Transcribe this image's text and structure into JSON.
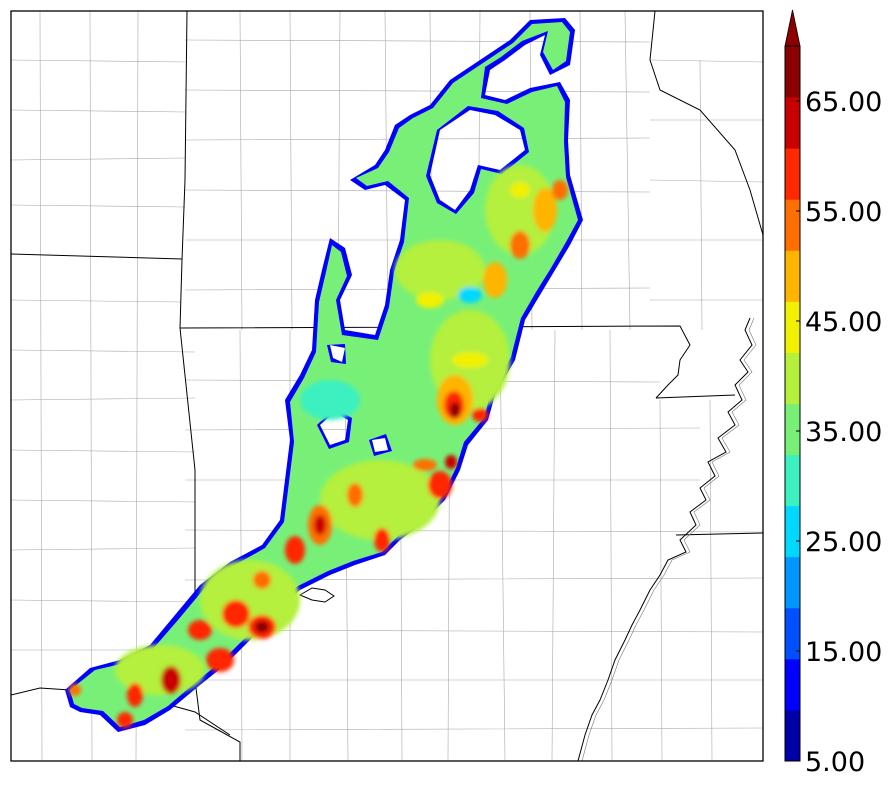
{
  "colorbar": {
    "labels": [
      "5.00",
      "15.00",
      "25.00",
      "35.00",
      "45.00",
      "55.00",
      "65.00"
    ],
    "levels": [
      5,
      10,
      15,
      20,
      25,
      30,
      35,
      40,
      45,
      50,
      55,
      60,
      65,
      70
    ],
    "colors": [
      "#0000a8",
      "#0000ff",
      "#0050ff",
      "#0095ff",
      "#00d8ff",
      "#3cf0c0",
      "#78f078",
      "#b4f03c",
      "#f0f000",
      "#ffb400",
      "#ff6e00",
      "#ff2800",
      "#c80000",
      "#8c0000"
    ],
    "extend": "max"
  },
  "map": {
    "background": "#ffffff",
    "border_color": "#000000",
    "county_line_color": "#a0a0a0"
  }
}
